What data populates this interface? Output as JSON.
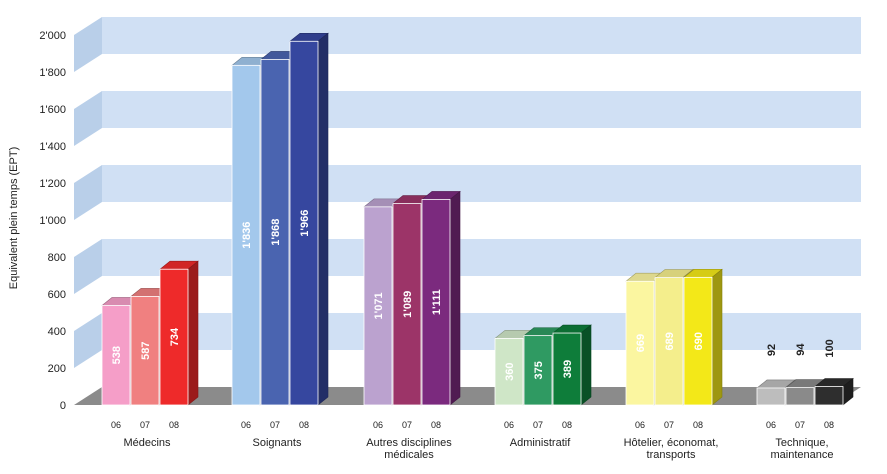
{
  "chart_data": {
    "type": "bar",
    "title": "",
    "xlabel": "",
    "ylabel": "Equivalent plein temps (EPT)",
    "ylim": [
      0,
      2000
    ],
    "yticks": [
      0,
      200,
      400,
      600,
      800,
      1000,
      1200,
      1400,
      1600,
      1800,
      2000
    ],
    "ytick_labels": [
      "0",
      "200",
      "400",
      "600",
      "800",
      "1'000",
      "1'200",
      "1'400",
      "1'600",
      "1'800",
      "2'000"
    ],
    "grid": "alternating horizontal bands",
    "years": [
      "06",
      "07",
      "08"
    ],
    "groups": [
      {
        "name": "Médecins",
        "label_lines": [
          "Médecins"
        ],
        "values": [
          538,
          587,
          734
        ],
        "value_labels": [
          "538",
          "587",
          "734"
        ],
        "colors": [
          "#f59ec8",
          "#f08080",
          "#ee2a2a"
        ]
      },
      {
        "name": "Soignants",
        "label_lines": [
          "Soignants"
        ],
        "values": [
          1836,
          1868,
          1966
        ],
        "value_labels": [
          "1'836",
          "1'868",
          "1'966"
        ],
        "colors": [
          "#a3c8ec",
          "#4a64b0",
          "#36479f"
        ]
      },
      {
        "name": "Autres disciplines médicales",
        "label_lines": [
          "Autres disciplines",
          "médicales"
        ],
        "values": [
          1071,
          1089,
          1111
        ],
        "value_labels": [
          "1'071",
          "1'089",
          "1'111"
        ],
        "colors": [
          "#bba2cf",
          "#9c3468",
          "#7b2a7e"
        ]
      },
      {
        "name": "Administratif",
        "label_lines": [
          "Administratif"
        ],
        "values": [
          360,
          375,
          389
        ],
        "value_labels": [
          "360",
          "375",
          "389"
        ],
        "colors": [
          "#cfe6c7",
          "#2f9a62",
          "#0e7d3a"
        ]
      },
      {
        "name": "Hôtelier, économat, transports",
        "label_lines": [
          "Hôtelier, économat,",
          "transports"
        ],
        "values": [
          669,
          689,
          690
        ],
        "value_labels": [
          "669",
          "689",
          "690"
        ],
        "colors": [
          "#fbf6a0",
          "#f4ee8c",
          "#f3e818"
        ]
      },
      {
        "name": "Technique, maintenance",
        "label_lines": [
          "Technique,",
          "maintenance"
        ],
        "values": [
          92,
          94,
          100
        ],
        "value_labels": [
          "92",
          "94",
          "100"
        ],
        "colors": [
          "#bdbdbd",
          "#8a8a8a",
          "#2e2e2e"
        ]
      }
    ],
    "colors": {
      "band": "#d0e0f4",
      "band_side": "#b9cfe9",
      "floor": "#8b8b8b",
      "value_label_inside": "#ffffff",
      "value_label_outside": "#222222",
      "axis_text": "#222222"
    }
  }
}
